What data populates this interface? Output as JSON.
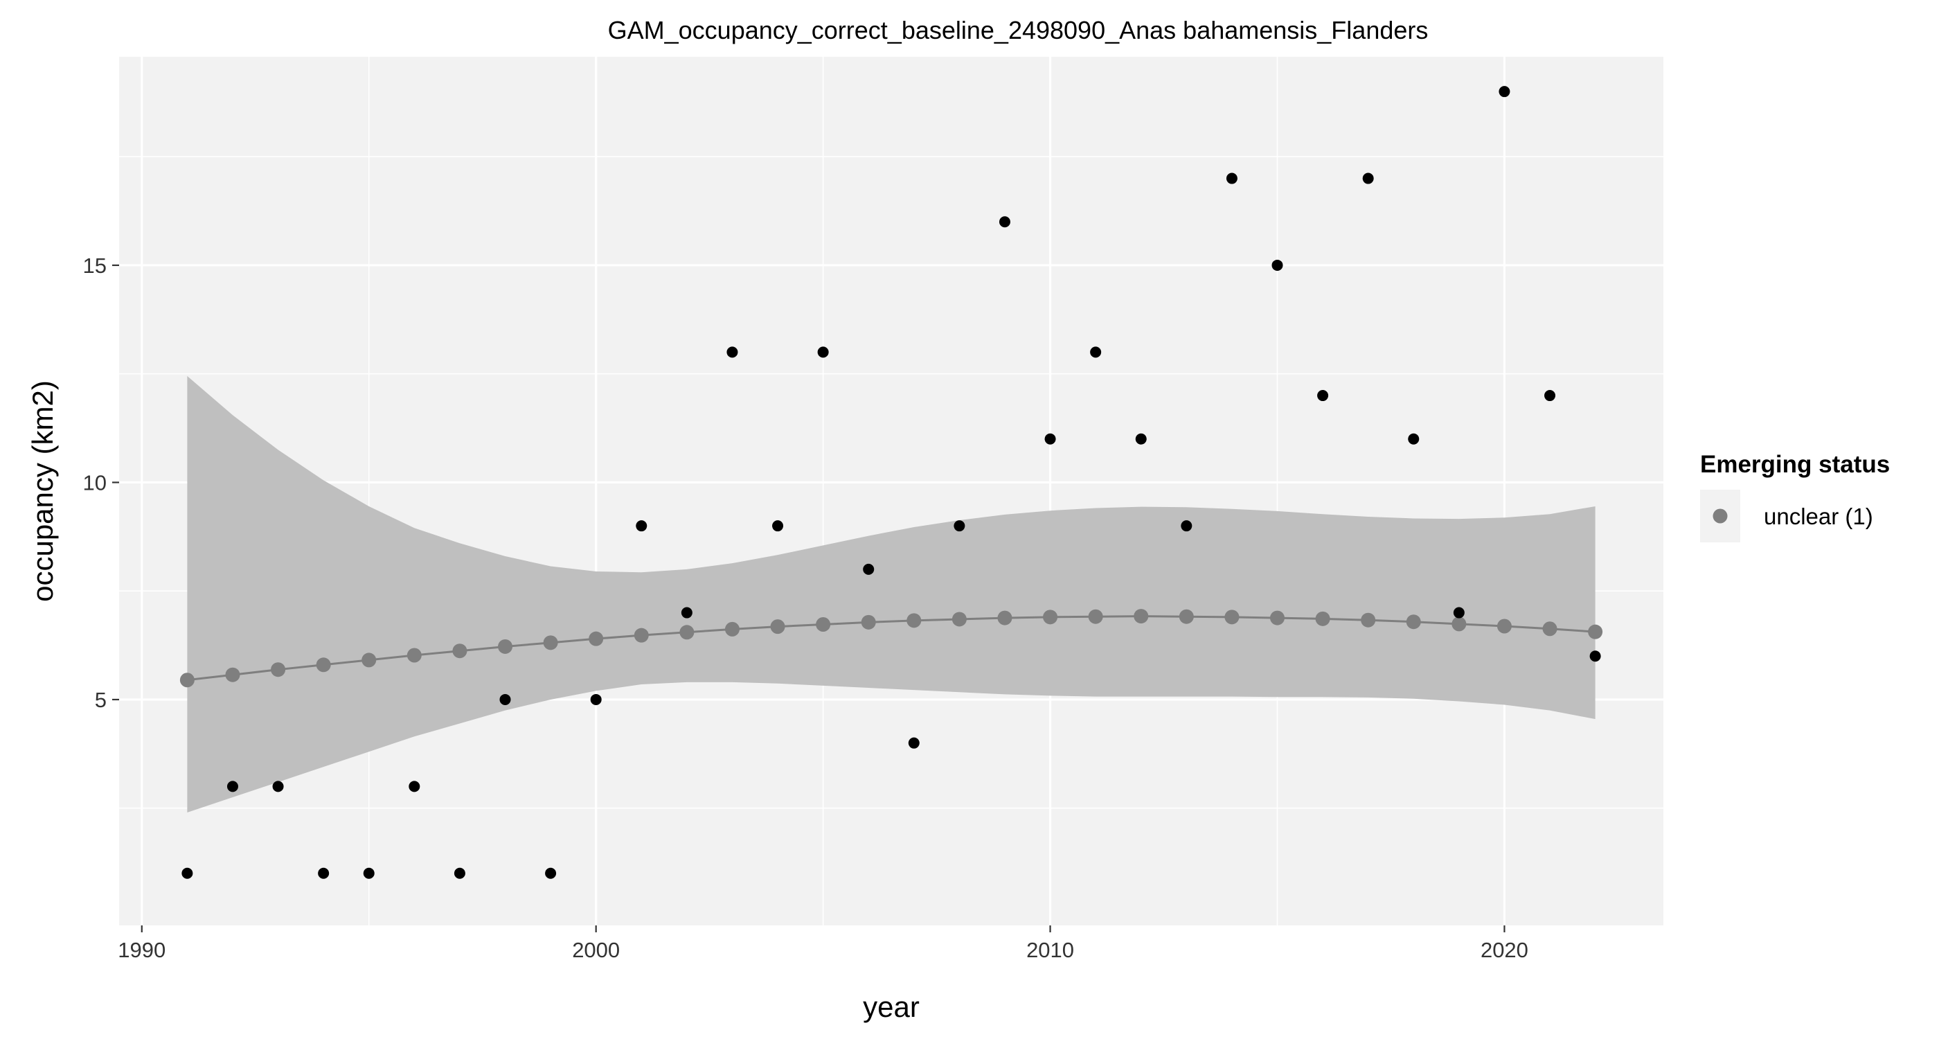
{
  "chart_data": {
    "type": "scatter",
    "title": "GAM_occupancy_correct_baseline_2498090_Anas bahamensis_Flanders",
    "xlabel": "year",
    "ylabel": "occupancy (km2)",
    "xlim": [
      1989.5,
      2023.5
    ],
    "ylim": [
      -0.2,
      19.8
    ],
    "x_ticks": [
      1990,
      2000,
      2010,
      2020
    ],
    "y_ticks": [
      5,
      10,
      15
    ],
    "grid": true,
    "legend": {
      "title": "Emerging status",
      "position": "right",
      "entries": [
        {
          "label": "unclear (1)",
          "color": "#7f7f7f"
        }
      ]
    },
    "colors": {
      "panel": "#f2f2f2",
      "gridline": "#ffffff",
      "observed": "#000000",
      "fit": "#7f7f7f",
      "ribbon": "#bfbfbf"
    },
    "series": [
      {
        "kind": "observed",
        "x": [
          1991,
          1992,
          1993,
          1994,
          1995,
          1996,
          1997,
          1998,
          1999,
          2000,
          2001,
          2002,
          2003,
          2004,
          2005,
          2006,
          2007,
          2008,
          2009,
          2010,
          2011,
          2012,
          2013,
          2014,
          2015,
          2016,
          2017,
          2018,
          2019,
          2020,
          2021,
          2022
        ],
        "y": [
          1,
          3,
          3,
          1,
          1,
          3,
          1,
          5,
          1,
          5,
          9,
          7,
          13,
          9,
          13,
          8,
          4,
          9,
          16,
          11,
          13,
          11,
          9,
          17,
          15,
          12,
          17,
          11,
          7,
          19,
          12,
          6
        ]
      },
      {
        "kind": "fit",
        "name": "unclear (1)",
        "x": [
          1991,
          1992,
          1993,
          1994,
          1995,
          1996,
          1997,
          1998,
          1999,
          2000,
          2001,
          2002,
          2003,
          2004,
          2005,
          2006,
          2007,
          2008,
          2009,
          2010,
          2011,
          2012,
          2013,
          2014,
          2015,
          2016,
          2017,
          2018,
          2019,
          2020,
          2021,
          2022
        ],
        "y": [
          5.45,
          5.57,
          5.69,
          5.8,
          5.91,
          6.02,
          6.12,
          6.22,
          6.31,
          6.4,
          6.48,
          6.55,
          6.62,
          6.68,
          6.73,
          6.78,
          6.82,
          6.85,
          6.88,
          6.9,
          6.91,
          6.92,
          6.91,
          6.9,
          6.88,
          6.86,
          6.83,
          6.79,
          6.74,
          6.69,
          6.63,
          6.56
        ],
        "lower": [
          2.4,
          2.75,
          3.1,
          3.45,
          3.8,
          4.15,
          4.45,
          4.75,
          5.0,
          5.2,
          5.35,
          5.4,
          5.4,
          5.37,
          5.32,
          5.27,
          5.22,
          5.17,
          5.12,
          5.09,
          5.07,
          5.07,
          5.07,
          5.07,
          5.06,
          5.06,
          5.05,
          5.02,
          4.96,
          4.88,
          4.75,
          4.55
        ],
        "upper": [
          12.45,
          11.55,
          10.75,
          10.05,
          9.45,
          8.95,
          8.6,
          8.3,
          8.07,
          7.95,
          7.93,
          8.0,
          8.14,
          8.33,
          8.55,
          8.77,
          8.97,
          9.13,
          9.26,
          9.35,
          9.41,
          9.44,
          9.43,
          9.39,
          9.34,
          9.27,
          9.21,
          9.17,
          9.16,
          9.19,
          9.27,
          9.45
        ]
      }
    ]
  }
}
